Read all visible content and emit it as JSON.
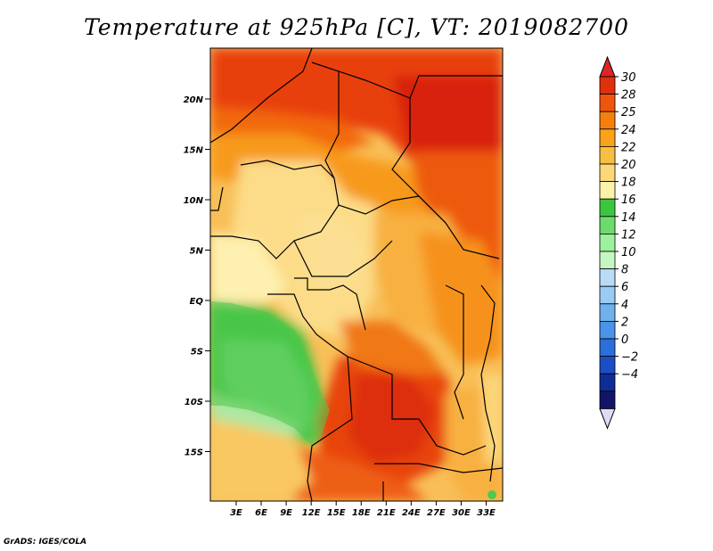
{
  "title": "Temperature at 925hPa [C], VT: 2019082700",
  "credit": "GrADS: IGES/COLA",
  "map": {
    "y_ticks": [
      {
        "label": "20N",
        "lat": 20
      },
      {
        "label": "15N",
        "lat": 15
      },
      {
        "label": "10N",
        "lat": 10
      },
      {
        "label": "5N",
        "lat": 5
      },
      {
        "label": "EQ",
        "lat": 0
      },
      {
        "label": "5S",
        "lat": -5
      },
      {
        "label": "10S",
        "lat": -10
      },
      {
        "label": "15S",
        "lat": -15
      }
    ],
    "x_ticks": [
      {
        "label": "3E",
        "lon": 3
      },
      {
        "label": "6E",
        "lon": 6
      },
      {
        "label": "9E",
        "lon": 9
      },
      {
        "label": "12E",
        "lon": 12
      },
      {
        "label": "15E",
        "lon": 15
      },
      {
        "label": "18E",
        "lon": 18
      },
      {
        "label": "21E",
        "lon": 21
      },
      {
        "label": "24E",
        "lon": 24
      },
      {
        "label": "27E",
        "lon": 27
      },
      {
        "label": "30E",
        "lon": 30
      },
      {
        "label": "33E",
        "lon": 33
      }
    ]
  },
  "colorbar": {
    "labels": [
      "30",
      "28",
      "25",
      "24",
      "22",
      "20",
      "18",
      "16",
      "14",
      "12",
      "10",
      "8",
      "6",
      "4",
      "2",
      "0",
      "−2",
      "−4"
    ],
    "colors": [
      "#e0300d",
      "#f0550c",
      "#f47f0c",
      "#f9a21a",
      "#f8be41",
      "#fbd77a",
      "#fdf1aa",
      "#3ec53e",
      "#6cdb6c",
      "#9df09d",
      "#c4f7c4",
      "#b8dcf8",
      "#9acbf3",
      "#6fb0ed",
      "#4a93e8",
      "#2a6fdc",
      "#1c4dc6",
      "#0f2d96",
      "#141466"
    ],
    "top_arrow_color": "#d8262a",
    "bottom_arrow_color": "#dcdcf8"
  }
}
